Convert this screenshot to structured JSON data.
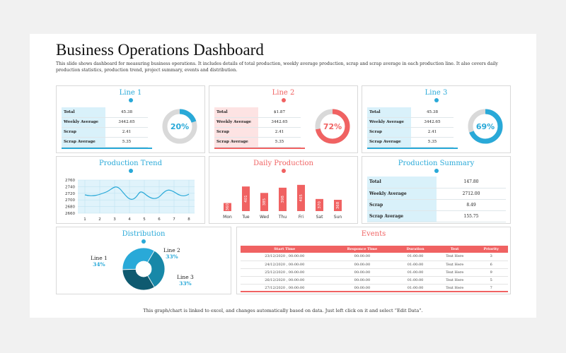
{
  "title": "Business Operations Dashboard",
  "description": "This slide shows dashboard for measuring business operations. It includes details of total production, weekly average production, scrap and scrap average in each production line. It also covers daily production statistics, production trend, project summary, events and distribution.",
  "colors": {
    "blue": "#29a9d8",
    "red": "#f06262",
    "dark": "#0f5a70",
    "mid": "#1888a8"
  },
  "line_cards": [
    {
      "title": "Line 1",
      "rows": [
        {
          "label": "Total",
          "value": "45.38"
        },
        {
          "label": "Weekly Average",
          "value": "3442.65"
        },
        {
          "label": "Scrap",
          "value": "2.41"
        },
        {
          "label": "Scrap Average",
          "value": "5.35"
        }
      ],
      "percent": "20%",
      "fraction": 0.2
    },
    {
      "title": "Line 2",
      "rows": [
        {
          "label": "Total",
          "value": "$1.87"
        },
        {
          "label": "Weekly Average",
          "value": "3442.65"
        },
        {
          "label": "Scrap",
          "value": "2.41"
        },
        {
          "label": "Scrap Average",
          "value": "5.35"
        }
      ],
      "percent": "72%",
      "fraction": 0.72
    },
    {
      "title": "Line 3",
      "rows": [
        {
          "label": "Total",
          "value": "45.38"
        },
        {
          "label": "Weekly Average",
          "value": "3442.65"
        },
        {
          "label": "Scrap",
          "value": "2.41"
        },
        {
          "label": "Scrap Average",
          "value": "5.35"
        }
      ],
      "percent": "69%",
      "fraction": 0.69
    }
  ],
  "trend": {
    "title": "Production Trend",
    "y_ticks": [
      "2760",
      "2740",
      "2720",
      "2700",
      "2680",
      "2660"
    ],
    "x_ticks": [
      "1",
      "2",
      "3",
      "4",
      "5",
      "6",
      "7",
      "8"
    ]
  },
  "daily": {
    "title": "Daily Production",
    "days": [
      "Mon",
      "Tue",
      "Wed",
      "Thu",
      "Fri",
      "Sat",
      "Sun"
    ],
    "values": [
      "360",
      "401",
      "385",
      "398",
      "405",
      "370",
      "368"
    ]
  },
  "summary": {
    "title": "Production Summary",
    "rows": [
      {
        "label": "Total",
        "value": "147.80"
      },
      {
        "label": "Weekly Average",
        "value": "2712.00"
      },
      {
        "label": "Scrap",
        "value": "8.49"
      },
      {
        "label": "Scrap Average",
        "value": "155.75"
      }
    ]
  },
  "distribution": {
    "title": "Distribution",
    "items": [
      {
        "name": "Line 1",
        "pct": "34%",
        "value": 34
      },
      {
        "name": "Line 2",
        "pct": "33%",
        "value": 33
      },
      {
        "name": "Line 3",
        "pct": "33%",
        "value": 33
      }
    ]
  },
  "events": {
    "title": "Events",
    "headers": [
      "Start Time",
      "Responce Time",
      "Duration",
      "Text",
      "Priority"
    ],
    "rows": [
      [
        "23/12/2020 , 00:00:00",
        "00:00:00",
        "01:00:00",
        "Text Here",
        "3"
      ],
      [
        "24/12/2020 , 00:00:00",
        "00:00:00",
        "01:00:00",
        "Text Here",
        "6"
      ],
      [
        "25/12/2020 , 00:00:00",
        "00:00:00",
        "01:00:00",
        "Text Here",
        "9"
      ],
      [
        "26/12/2020 , 00:00:00",
        "00:00:00",
        "01:00:00",
        "Text Here",
        "5"
      ],
      [
        "27/12/2020 , 00:00:00",
        "00:00:00",
        "01:00:00",
        "Text Here",
        "7"
      ]
    ]
  },
  "footer": "This graph/chart is linked to excel, and changes automatically based on data. Just left click on it and select “Edit Data”."
}
